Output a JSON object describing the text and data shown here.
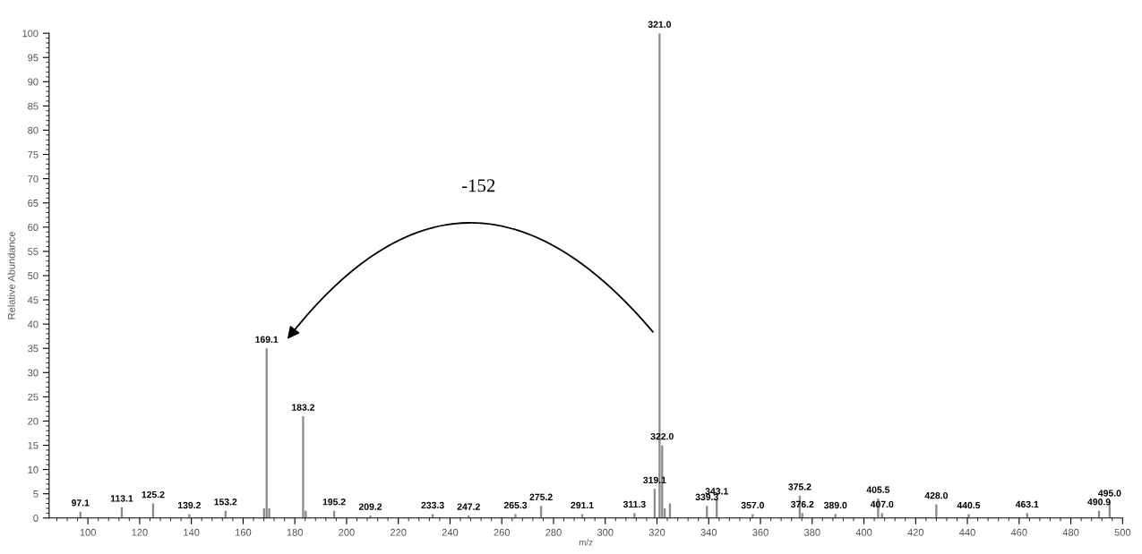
{
  "chart_data": {
    "type": "bar",
    "xlabel": "m/z",
    "ylabel": "Relative Abundance",
    "x": [
      97.1,
      113.1,
      125.2,
      139.2,
      153.2,
      168.1,
      169.1,
      170.1,
      183.2,
      184.2,
      195.2,
      209.2,
      233.3,
      247.2,
      265.3,
      275.2,
      291.1,
      311.3,
      319.1,
      321.0,
      322.0,
      323.0,
      325.0,
      339.3,
      343.1,
      357.0,
      375.2,
      376.2,
      389.0,
      405.5,
      407.0,
      428.0,
      440.5,
      463.1,
      490.9,
      495.0
    ],
    "values": [
      1.3,
      2.2,
      3,
      0.8,
      1.5,
      2,
      35,
      2,
      21,
      1.5,
      1.5,
      0.5,
      0.8,
      0.5,
      0.8,
      2.5,
      0.8,
      1,
      6,
      100,
      15,
      2,
      3,
      2.5,
      3.7,
      0.8,
      4.6,
      1,
      0.8,
      4,
      1,
      2.8,
      0.8,
      1,
      1.5,
      3.3
    ],
    "color": "#8c8c8c",
    "xlim": [
      85,
      500
    ],
    "ylim": [
      0,
      100
    ],
    "xticks": [
      100,
      120,
      140,
      160,
      180,
      200,
      220,
      240,
      260,
      280,
      300,
      320,
      340,
      360,
      380,
      400,
      420,
      440,
      460,
      480,
      500
    ],
    "yticks": [
      0,
      5,
      10,
      15,
      20,
      25,
      30,
      35,
      40,
      45,
      50,
      55,
      60,
      65,
      70,
      75,
      80,
      85,
      90,
      95,
      100
    ],
    "grid": false,
    "legend": false,
    "annotations": [
      "-152",
      {
        "text": "97.1",
        "x": 97.1,
        "y": 1.3
      },
      {
        "text": "113.1",
        "x": 113.1,
        "y": 2.2
      },
      {
        "text": "125.2",
        "x": 125.2,
        "y": 3
      },
      {
        "text": "139.2",
        "x": 139.2,
        "y": 0.8
      },
      {
        "text": "153.2",
        "x": 153.2,
        "y": 1.5
      },
      {
        "text": "169.1",
        "x": 169.1,
        "y": 35
      },
      {
        "text": "183.2",
        "x": 183.2,
        "y": 21
      },
      {
        "text": "195.2",
        "x": 195.2,
        "y": 1.5
      },
      {
        "text": "209.2",
        "x": 209.2,
        "y": 0.5
      },
      {
        "text": "233.3",
        "x": 233.3,
        "y": 0.8
      },
      {
        "text": "247.2",
        "x": 247.2,
        "y": 0.5
      },
      {
        "text": "265.3",
        "x": 265.3,
        "y": 0.8
      },
      {
        "text": "275.2",
        "x": 275.2,
        "y": 2.5
      },
      {
        "text": "291.1",
        "x": 291.1,
        "y": 0.8
      },
      {
        "text": "311.3",
        "x": 311.3,
        "y": 1
      },
      {
        "text": "319.1",
        "x": 319.1,
        "y": 6
      },
      {
        "text": "321.0",
        "x": 321.0,
        "y": 100
      },
      {
        "text": "322.0",
        "x": 322.0,
        "y": 15
      },
      {
        "text": "339.3",
        "x": 339.3,
        "y": 2.5
      },
      {
        "text": "343.1",
        "x": 343.1,
        "y": 3.7
      },
      {
        "text": "357.0",
        "x": 357.0,
        "y": 0.8
      },
      {
        "text": "375.2",
        "x": 375.2,
        "y": 4.6
      },
      {
        "text": "376.2",
        "x": 376.2,
        "y": 1
      },
      {
        "text": "389.0",
        "x": 389.0,
        "y": 0.8
      },
      {
        "text": "405.5",
        "x": 405.5,
        "y": 4
      },
      {
        "text": "407.0",
        "x": 407.0,
        "y": 1
      },
      {
        "text": "428.0",
        "x": 428.0,
        "y": 2.8
      },
      {
        "text": "440.5",
        "x": 440.5,
        "y": 0.8
      },
      {
        "text": "463.1",
        "x": 463.1,
        "y": 1
      },
      {
        "text": "490.9",
        "x": 490.9,
        "y": 1.5
      },
      {
        "text": "495.0",
        "x": 495.0,
        "y": 3.3
      }
    ]
  }
}
